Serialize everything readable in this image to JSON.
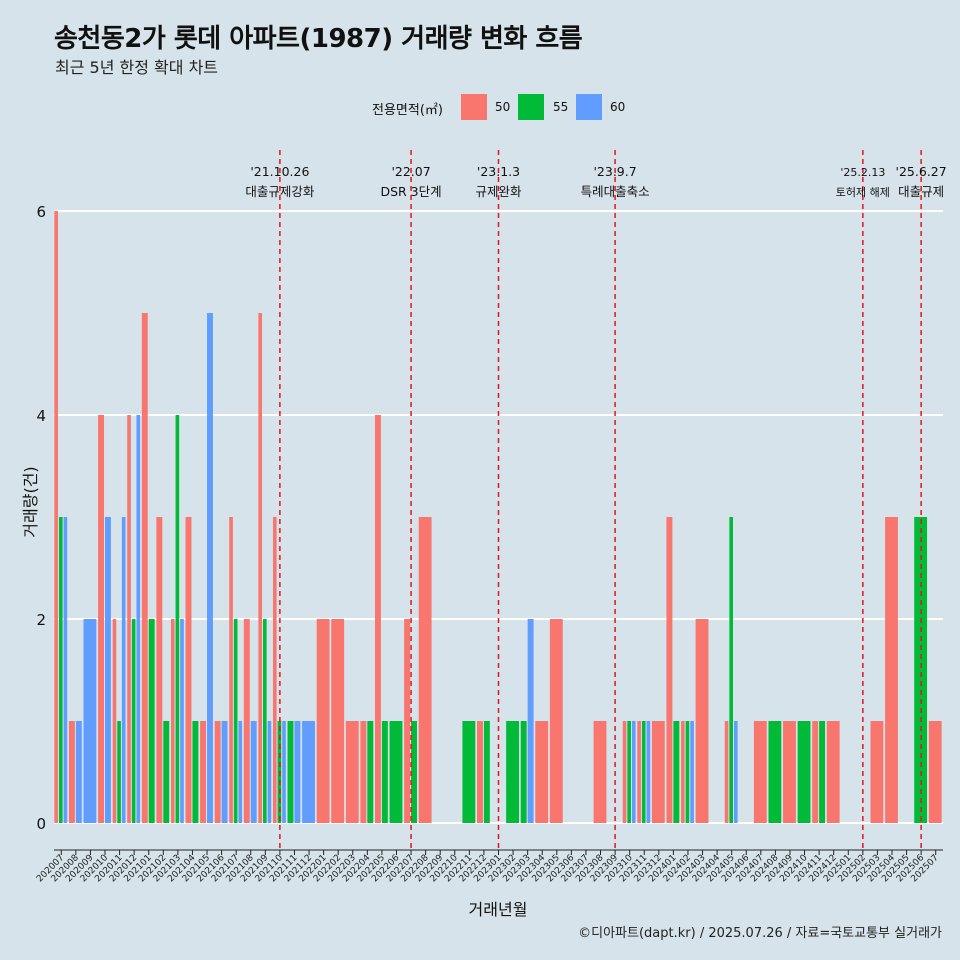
{
  "chart_data": {
    "type": "bar",
    "title": "송천동2가 롯데 아파트(1987) 거래량 변화 흐름",
    "subtitle": "최근 5년 한정 확대 차트",
    "xlabel": "거래년월",
    "ylabel": "거래량(건)",
    "ylim": [
      0,
      6
    ],
    "yticks": [
      "0",
      "2",
      "4",
      "6"
    ],
    "grid": "horizontal",
    "legend": {
      "title": "전용면적(㎡)",
      "placement": "top"
    },
    "categories": [
      "202007",
      "202008",
      "202009",
      "202010",
      "202011",
      "202012",
      "202101",
      "202102",
      "202103",
      "202104",
      "202105",
      "202106",
      "202107",
      "202108",
      "202109",
      "202110",
      "202111",
      "202112",
      "202201",
      "202202",
      "202203",
      "202204",
      "202205",
      "202206",
      "202207",
      "202208",
      "202209",
      "202210",
      "202211",
      "202212",
      "202301",
      "202302",
      "202303",
      "202304",
      "202305",
      "202306",
      "202307",
      "202308",
      "202309",
      "202310",
      "202311",
      "202312",
      "202401",
      "202402",
      "202403",
      "202404",
      "202405",
      "202406",
      "202407",
      "202408",
      "202409",
      "202410",
      "202411",
      "202412",
      "202501",
      "202502",
      "202503",
      "202504",
      "202505",
      "202506",
      "202507"
    ],
    "series": [
      {
        "name": "50",
        "color": "#f8766d",
        "values": [
          6,
          1,
          0,
          4,
          2,
          4,
          5,
          3,
          2,
          3,
          1,
          1,
          3,
          2,
          5,
          3,
          0,
          0,
          2,
          2,
          1,
          1,
          4,
          0,
          2,
          3,
          0,
          0,
          0,
          1,
          0,
          0,
          0,
          1,
          2,
          0,
          0,
          1,
          0,
          1,
          1,
          1,
          3,
          1,
          2,
          0,
          1,
          0,
          1,
          0,
          1,
          0,
          1,
          1,
          0,
          0,
          1,
          3,
          0,
          0,
          1
        ]
      },
      {
        "name": "55",
        "color": "#00ba38",
        "values": [
          3,
          0,
          0,
          0,
          1,
          2,
          2,
          1,
          4,
          1,
          0,
          0,
          2,
          0,
          2,
          1,
          1,
          0,
          0,
          0,
          0,
          1,
          1,
          1,
          1,
          0,
          0,
          0,
          1,
          1,
          0,
          1,
          1,
          0,
          0,
          0,
          0,
          0,
          0,
          1,
          1,
          0,
          1,
          1,
          0,
          0,
          3,
          0,
          0,
          1,
          0,
          1,
          1,
          0,
          0,
          0,
          0,
          0,
          0,
          3,
          0
        ]
      },
      {
        "name": "60",
        "color": "#619cff",
        "values": [
          3,
          1,
          2,
          3,
          3,
          4,
          0,
          0,
          2,
          0,
          5,
          1,
          1,
          1,
          1,
          1,
          1,
          1,
          0,
          0,
          0,
          0,
          0,
          0,
          0,
          0,
          0,
          0,
          0,
          0,
          0,
          0,
          2,
          0,
          0,
          0,
          0,
          0,
          0,
          1,
          1,
          0,
          0,
          1,
          0,
          0,
          1,
          0,
          0,
          0,
          0,
          0,
          0,
          0,
          0,
          0,
          0,
          0,
          0,
          0,
          0
        ]
      }
    ],
    "events": [
      {
        "category": "202110",
        "date": "'21.10.26",
        "label": "대출규제강화"
      },
      {
        "category": "202207",
        "date": "'22.07",
        "label": "DSR 3단계"
      },
      {
        "category": "202301",
        "date": "'23.1.3",
        "label": "규제완화"
      },
      {
        "category": "202309",
        "date": "'23.9.7",
        "label": "특례대출축소"
      },
      {
        "category": "202502",
        "date": "'25.2.13",
        "label": "토허제 해제"
      },
      {
        "category": "202506",
        "date": "'25.6.27",
        "label": "대출규제"
      }
    ]
  },
  "caption": "©디아파트(dapt.kr) / 2025.07.26 / 자료=국토교통부 실거래가"
}
